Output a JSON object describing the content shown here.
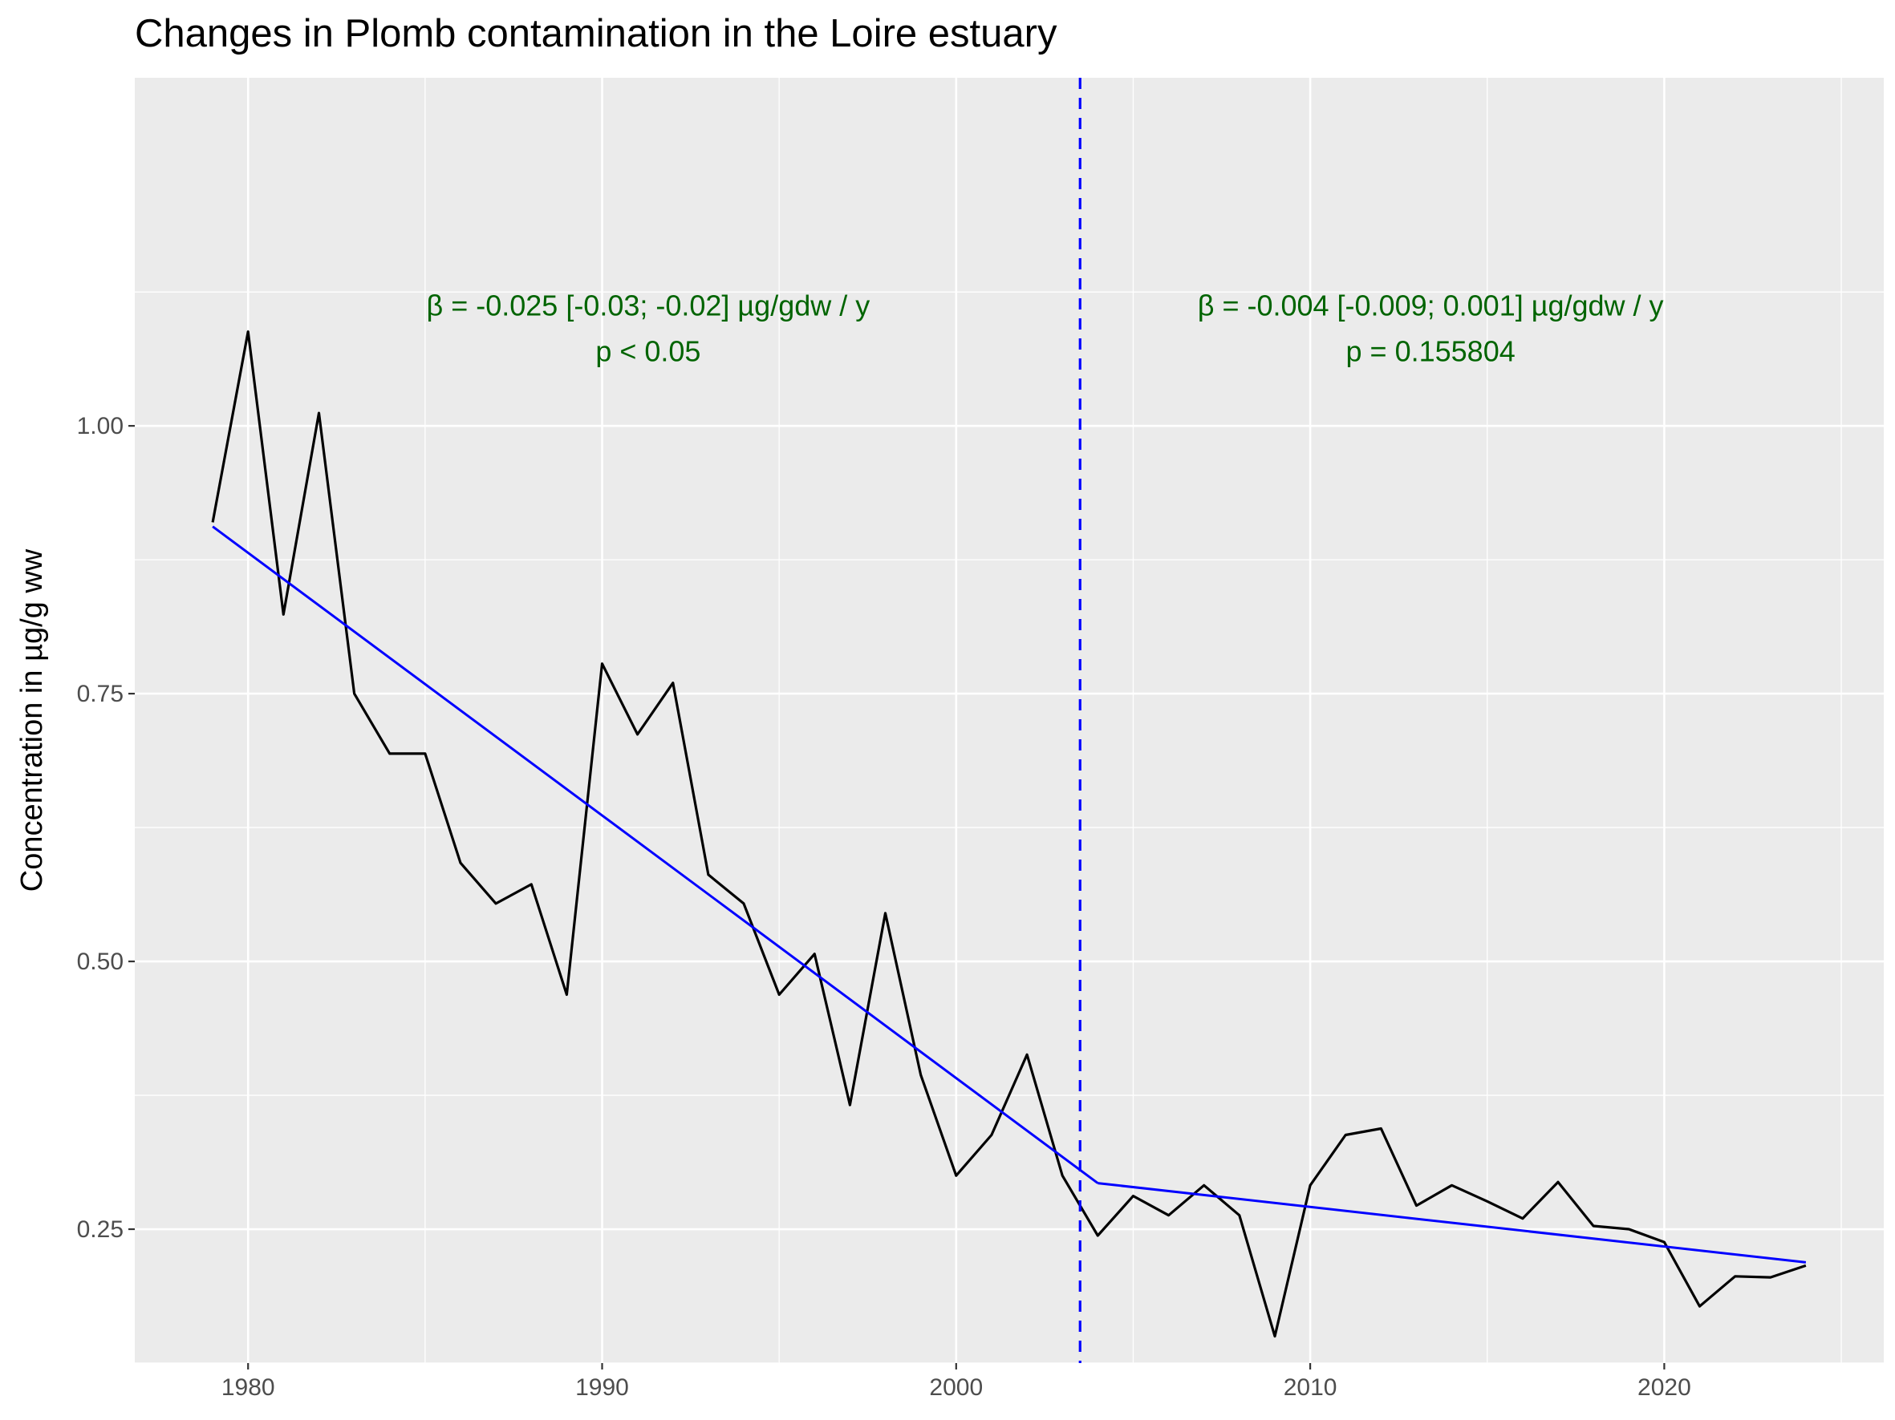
{
  "chart_data": {
    "type": "line",
    "title": "Changes in Plomb contamination in the Loire estuary",
    "xlabel": "",
    "ylabel": "Concentration in µg/g ww",
    "xlim": [
      1976.8,
      2026.2
    ],
    "ylim": [
      0.125,
      1.325
    ],
    "x_ticks": [
      1980,
      1990,
      2000,
      2010,
      2020
    ],
    "y_ticks": [
      0.25,
      0.5,
      0.75,
      1.0
    ],
    "x_tick_labels": [
      "1980",
      "1990",
      "2000",
      "2010",
      "2020"
    ],
    "y_tick_labels": [
      "0.25",
      "0.50",
      "0.75",
      "1.00"
    ],
    "grid": true,
    "background": "#ebebeb",
    "series": [
      {
        "color": "#000000",
        "x": [
          1979,
          1980,
          1981,
          1982,
          1983,
          1984,
          1985,
          1986,
          1987,
          1988,
          1989,
          1990,
          1991,
          1992,
          1993,
          1994,
          1995,
          1996,
          1997,
          1998,
          1999,
          2000,
          2001,
          2002,
          2003,
          2004,
          2005,
          2006,
          2007,
          2008,
          2009,
          2010,
          2011,
          2012,
          2013,
          2014,
          2015,
          2016,
          2017,
          2018,
          2019,
          2020,
          2021,
          2022,
          2023,
          2024
        ],
        "y": [
          0.91,
          1.088,
          0.824,
          1.012,
          0.75,
          0.694,
          0.694,
          0.592,
          0.554,
          0.572,
          0.469,
          0.778,
          0.712,
          0.76,
          0.581,
          0.554,
          0.469,
          0.507,
          0.366,
          0.545,
          0.394,
          0.3,
          0.338,
          0.413,
          0.3,
          0.244,
          0.281,
          0.263,
          0.291,
          0.263,
          0.15,
          0.291,
          0.338,
          0.344,
          0.272,
          0.291,
          0.276,
          0.26,
          0.294,
          0.253,
          0.25,
          0.238,
          0.178,
          0.206,
          0.205,
          0.216
        ]
      }
    ],
    "trend_lines": [
      {
        "color": "#0000ff",
        "x": [
          1979,
          2004
        ],
        "y": [
          0.906,
          0.293
        ]
      },
      {
        "color": "#0000ff",
        "x": [
          2004,
          2024
        ],
        "y": [
          0.293,
          0.219
        ]
      }
    ],
    "breakpoint": {
      "x": 2003.5,
      "color": "#0000ff",
      "style": "dashed"
    },
    "annotations": [
      {
        "color": "#006400",
        "x": 1991.3,
        "y": 1.1,
        "lines": [
          "β = -0.025 [-0.03; -0.02] µg/gdw / y",
          "p < 0.05"
        ]
      },
      {
        "color": "#006400",
        "x": 2013.4,
        "y": 1.1,
        "lines": [
          "β = -0.004 [-0.009; 0.001] µg/gdw / y",
          "p = 0.155804"
        ]
      }
    ]
  }
}
